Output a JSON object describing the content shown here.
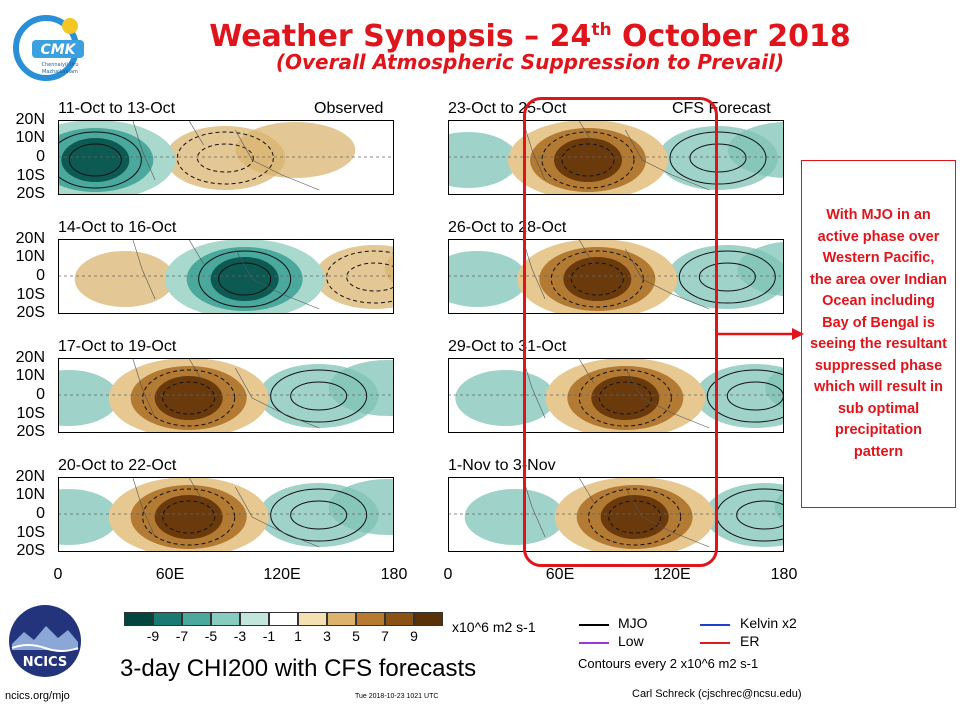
{
  "header": {
    "title_main": "Weather Synopsis – 24",
    "title_sup": "th",
    "title_end": " October 2018",
    "subtitle": "(Overall Atmospheric Suppression to Prevail)"
  },
  "logo_cmk": {
    "text_top": "Chennaiyil Oru",
    "text_bottom": "Mazhaikaalam",
    "letters": "CMK"
  },
  "chart_data": {
    "type": "heatmap",
    "variable": "3-day CHI200 with CFS forecasts",
    "units": "x10^6 m2 s-1",
    "lat_ticks": [
      "20N",
      "10N",
      "0",
      "10S",
      "20S"
    ],
    "lon_ticks": [
      "0",
      "60E",
      "120E",
      "180"
    ],
    "left_column_tag": "Observed",
    "right_column_tag": "CFS Forecast",
    "panels": [
      {
        "label": "11-Oct to 13-Oct",
        "kind": "observed",
        "anomaly_center_lon": 20,
        "anomaly_sign": "negative"
      },
      {
        "label": "14-Oct to 16-Oct",
        "kind": "observed",
        "anomaly_center_lon": 100,
        "anomaly_sign": "negative"
      },
      {
        "label": "17-Oct to 19-Oct",
        "kind": "observed",
        "anomaly_center_lon": 70,
        "anomaly_sign": "positive"
      },
      {
        "label": "20-Oct to 22-Oct",
        "kind": "observed",
        "anomaly_center_lon": 70,
        "anomaly_sign": "positive"
      },
      {
        "label": "23-Oct to 25-Oct",
        "kind": "forecast",
        "anomaly_center_lon": 75,
        "anomaly_sign": "positive"
      },
      {
        "label": "26-Oct to 28-Oct",
        "kind": "forecast",
        "anomaly_center_lon": 80,
        "anomaly_sign": "positive"
      },
      {
        "label": "29-Oct to 31-Oct",
        "kind": "forecast",
        "anomaly_center_lon": 95,
        "anomaly_sign": "positive"
      },
      {
        "label": "1-Nov to 3-Nov",
        "kind": "forecast",
        "anomaly_center_lon": 100,
        "anomaly_sign": "positive"
      }
    ],
    "colorbar": {
      "ticks": [
        "-9",
        "-7",
        "-5",
        "-3",
        "-1",
        "1",
        "3",
        "5",
        "7",
        "9"
      ],
      "colors": [
        "#01453f",
        "#1a7a72",
        "#4aa89c",
        "#86cdbf",
        "#c2e6dc",
        "#ffffff",
        "#f4e0b0",
        "#dcb26c",
        "#b87a30",
        "#8a5214",
        "#5a3208"
      ]
    },
    "legend": [
      {
        "name": "MJO",
        "color": "#000000"
      },
      {
        "name": "Kelvin x2",
        "color": "#1f3fd0"
      },
      {
        "name": "Low",
        "color": "#9b38d9"
      },
      {
        "name": "ER",
        "color": "#e01a1a"
      }
    ],
    "contour_note": "Contours every 2 x10^6 m2 s-1"
  },
  "annotation": {
    "note": "With MJO in an active phase over Western Pacific, the area over Indian Ocean including Bay of Bengal is seeing the resultant suppressed phase which will result in sub optimal precipitation pattern"
  },
  "footer": {
    "product_title": "3-day CHI200 with CFS forecasts",
    "ncics_logo_text": "NCICS",
    "url": "ncics.org/mjo",
    "timestamp": "Tue 2018-10-23 1021 UTC",
    "author": "Carl Schreck (cjschrec@ncsu.edu)"
  }
}
